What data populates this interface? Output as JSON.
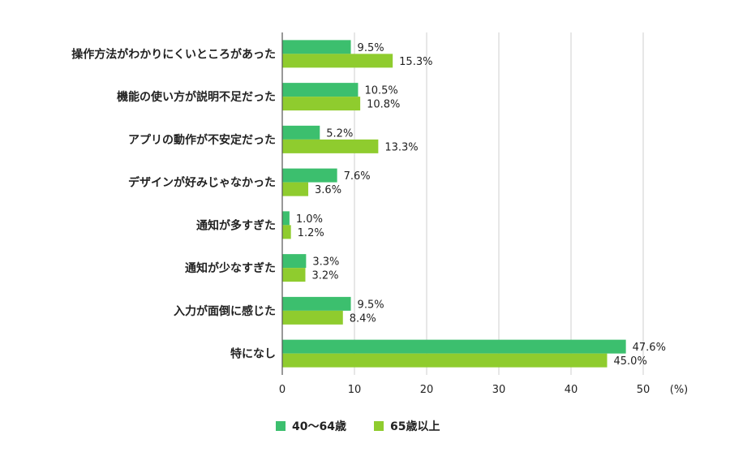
{
  "chart_data": {
    "type": "bar",
    "orientation": "horizontal",
    "categories": [
      "操作方法がわかりにくいところがあった",
      "機能の使い方が説明不足だった",
      "アプリの動作が不安定だった",
      "デザインが好みじゃなかった",
      "通知が多すぎた",
      "通知が少なすぎた",
      "入力が面倒に感じた",
      "特になし"
    ],
    "series": [
      {
        "name": "40〜64歳",
        "color": "#3cbf6e",
        "values": [
          9.5,
          10.5,
          5.2,
          7.6,
          1.0,
          3.3,
          9.5,
          47.6
        ],
        "labels": [
          "9.5%",
          "10.5%",
          "5.2%",
          "7.6%",
          "1.0%",
          "3.3%",
          "9.5%",
          "47.6%"
        ]
      },
      {
        "name": "65歳以上",
        "color": "#8fcc2e",
        "values": [
          15.3,
          10.8,
          13.3,
          3.6,
          1.2,
          3.2,
          8.4,
          45.0
        ],
        "labels": [
          "15.3%",
          "10.8%",
          "13.3%",
          "3.6%",
          "1.2%",
          "3.2%",
          "8.4%",
          "45.0%"
        ]
      }
    ],
    "xlim": [
      0,
      50
    ],
    "xticks": [
      "0",
      "10",
      "20",
      "30",
      "40",
      "50"
    ],
    "xunit": "(%)",
    "grid": true,
    "legend_position": "bottom"
  }
}
